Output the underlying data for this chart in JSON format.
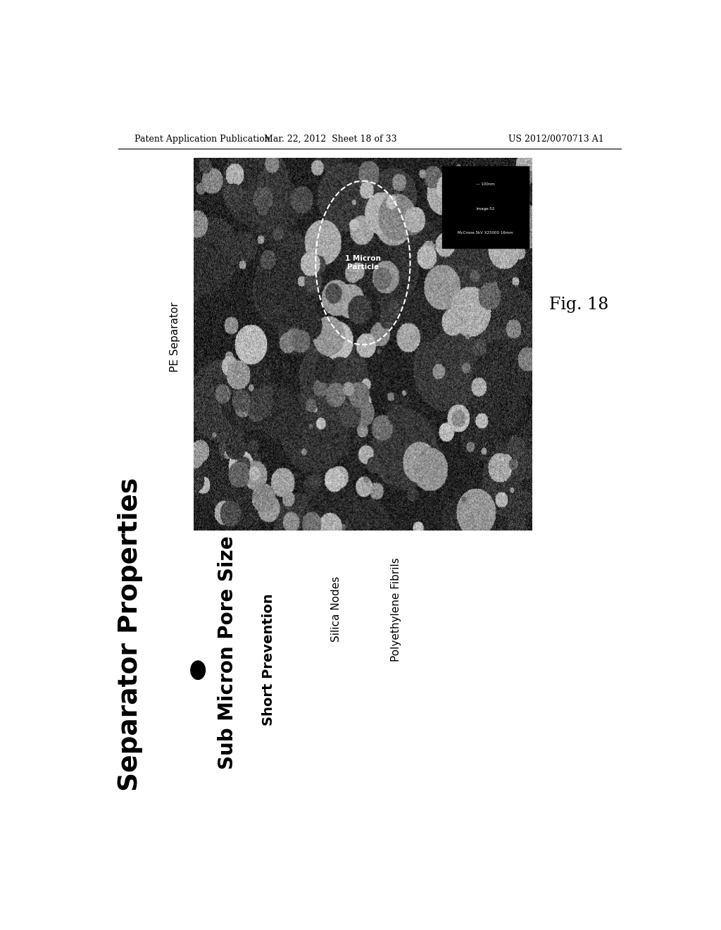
{
  "bg_color": "#ffffff",
  "header_left": "Patent Application Publication",
  "header_center": "Mar. 22, 2012  Sheet 18 of 33",
  "header_right": "US 2012/0070713 A1",
  "fig_label": "Fig. 18",
  "pe_separator_label": "PE Separator",
  "separator_props_label": "Separator Properties",
  "bullet_label": "Sub Micron Pore Size",
  "sub_bullet_label": "Short Prevention",
  "silica_nodes_label": "Silica Nodes",
  "polyethylene_label": "Polyethylene Fibrils",
  "sem_info_line1": "McCrone 5kV X25000 16mm",
  "sem_info_line2": "Image:52",
  "sem_info_line3": "— 100nm",
  "circle_label": "1 Micron\nParticle"
}
